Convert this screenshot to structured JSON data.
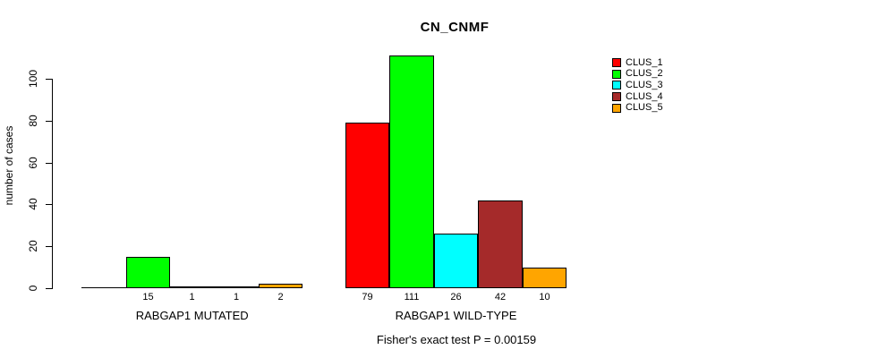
{
  "title": "CN_CNMF",
  "ylabel": "number of cases",
  "footer": "Fisher's exact test P = 0.00159",
  "legend": {
    "entries": [
      {
        "label": "CLUS_1",
        "color": "#FF0000"
      },
      {
        "label": "CLUS_2",
        "color": "#00FF00"
      },
      {
        "label": "CLUS_3",
        "color": "#00FFFF"
      },
      {
        "label": "CLUS_4",
        "color": "#A52A2A"
      },
      {
        "label": "CLUS_5",
        "color": "#FFA500"
      }
    ]
  },
  "chart_data": {
    "type": "bar",
    "title": "CN_CNMF",
    "xlabel": "",
    "ylabel": "number of cases",
    "annotation": "Fisher's exact test P = 0.00159",
    "legend_position": "right",
    "grid": false,
    "yticks": [
      0,
      20,
      40,
      60,
      80,
      100
    ],
    "ylim": [
      0,
      111
    ],
    "series_names": [
      "CLUS_1",
      "CLUS_2",
      "CLUS_3",
      "CLUS_4",
      "CLUS_5"
    ],
    "series_colors": [
      "#FF0000",
      "#00FF00",
      "#00FFFF",
      "#A52A2A",
      "#FFA500"
    ],
    "groups": [
      {
        "label": "RABGAP1 MUTATED",
        "values": [
          0,
          15,
          1,
          1,
          2
        ]
      },
      {
        "label": "RABGAP1 WILD-TYPE",
        "values": [
          79,
          111,
          26,
          42,
          10
        ]
      }
    ]
  }
}
